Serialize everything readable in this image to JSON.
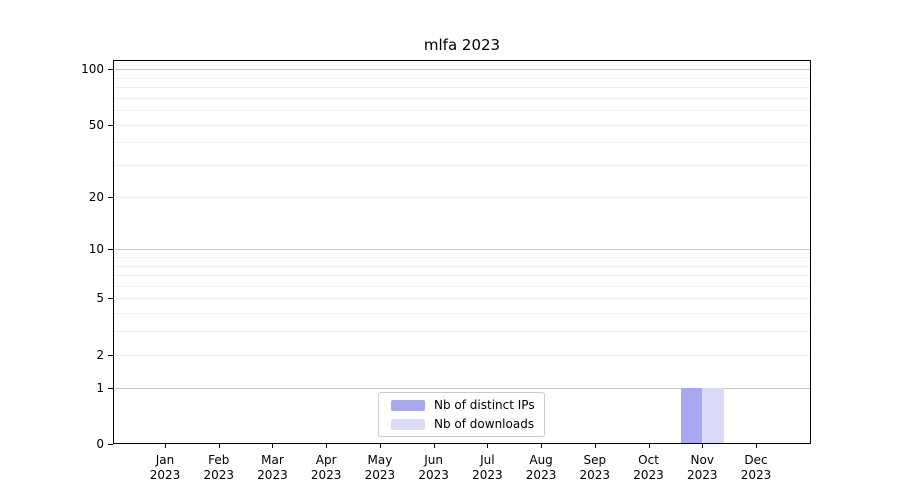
{
  "title": "mlfa 2023",
  "colors": {
    "background": "#ffffff",
    "spine": "#000000",
    "grid_major": "#c8c8c8",
    "grid_minor": "#eeeeee",
    "text": "#000000",
    "legend_border": "#cccccc"
  },
  "chart_data": {
    "type": "bar",
    "title": "mlfa 2023",
    "xlabel": "",
    "ylabel": "",
    "yscale": "log1p",
    "ylim": [
      0,
      112
    ],
    "yticks": [
      0,
      1,
      2,
      5,
      10,
      20,
      50,
      100
    ],
    "grid_major_values": [
      1,
      10,
      100
    ],
    "grid_minor_values": [
      2,
      3,
      4,
      5,
      6,
      7,
      8,
      9,
      20,
      30,
      40,
      50,
      60,
      70,
      80,
      90
    ],
    "categories": [
      "Jan",
      "Feb",
      "Mar",
      "Apr",
      "May",
      "Jun",
      "Jul",
      "Aug",
      "Sep",
      "Oct",
      "Nov",
      "Dec"
    ],
    "year_label": "2023",
    "series": [
      {
        "name": "Nb of distinct IPs",
        "color": "#a8a8f0",
        "values": [
          0,
          0,
          0,
          0,
          0,
          0,
          0,
          0,
          0,
          0,
          1,
          0
        ]
      },
      {
        "name": "Nb of downloads",
        "color": "#dbdbf8",
        "values": [
          0,
          0,
          0,
          0,
          0,
          0,
          0,
          0,
          0,
          0,
          1,
          0
        ]
      }
    ],
    "legend": {
      "position": "lower center",
      "entries": [
        "Nb of distinct IPs",
        "Nb of downloads"
      ]
    }
  }
}
